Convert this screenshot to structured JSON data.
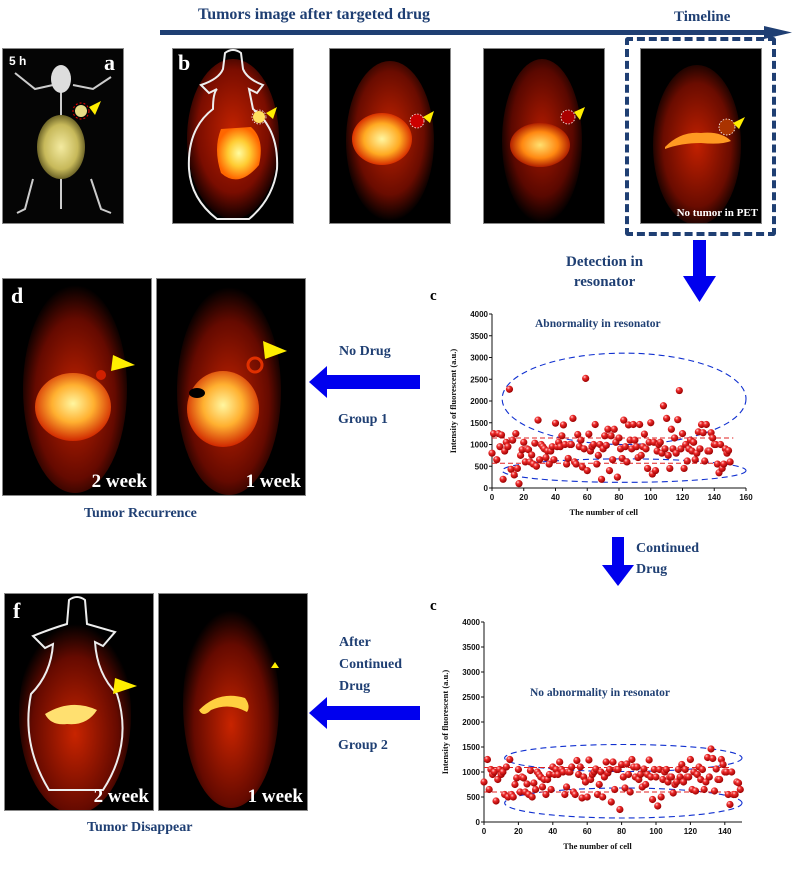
{
  "header": {
    "title": "Tumors image after targeted drug",
    "timeline_label": "Timeline"
  },
  "panels": {
    "a": {
      "letter": "a",
      "time_label": "5 h"
    },
    "b": {
      "letter": "b"
    },
    "last": {
      "caption": "No tumor in PET"
    },
    "d": {
      "letter": "d",
      "left_label": "2 week",
      "right_label": "1 week",
      "caption": "Tumor Recurrence"
    },
    "f": {
      "letter": "f",
      "left_label": "2 week",
      "right_label": "1 week",
      "caption": "Tumor Disappear"
    }
  },
  "flow": {
    "detection": [
      "Detection in",
      "resonator"
    ],
    "no_drug": "No Drug",
    "group1": "Group 1",
    "continued": [
      "Continued",
      "Drug"
    ],
    "after_continued": [
      "After",
      "Continued",
      "Drug"
    ],
    "group2": "Group 2"
  },
  "colors": {
    "navy": "#1f3f73",
    "arrow_blue": "#0000ee",
    "marker": "#e21a1a",
    "tumor_marker": "#ffee00"
  },
  "chart_data": [
    {
      "type": "scatter",
      "letter": "c",
      "title": "Abnormality in resonator",
      "xlabel": "The number of cell",
      "ylabel": "Intensity of fluorescent (a.u.)",
      "xlim": [
        0,
        160
      ],
      "ylim": [
        0,
        4000
      ],
      "xticks": [
        0,
        20,
        40,
        60,
        80,
        100,
        120,
        140,
        160
      ],
      "yticks": [
        0,
        500,
        1000,
        1500,
        2000,
        2500,
        3000,
        3500,
        4000
      ],
      "reference_lines": [
        1150,
        570
      ],
      "points": [
        [
          0,
          800
        ],
        [
          1,
          1250
        ],
        [
          3,
          650
        ],
        [
          4,
          1250
        ],
        [
          5,
          950
        ],
        [
          6,
          1220
        ],
        [
          7,
          200
        ],
        [
          8,
          850
        ],
        [
          9,
          1050
        ],
        [
          10,
          950
        ],
        [
          11,
          2270
        ],
        [
          12,
          430
        ],
        [
          13,
          1100
        ],
        [
          14,
          300
        ],
        [
          15,
          1250
        ],
        [
          16,
          450
        ],
        [
          17,
          100
        ],
        [
          18,
          750
        ],
        [
          19,
          880
        ],
        [
          20,
          1050
        ],
        [
          21,
          600
        ],
        [
          22,
          900
        ],
        [
          23,
          880
        ],
        [
          24,
          600
        ],
        [
          25,
          760
        ],
        [
          26,
          550
        ],
        [
          27,
          1030
        ],
        [
          28,
          500
        ],
        [
          29,
          1560
        ],
        [
          30,
          650
        ],
        [
          31,
          1000
        ],
        [
          32,
          950
        ],
        [
          33,
          900
        ],
        [
          34,
          700
        ],
        [
          35,
          850
        ],
        [
          36,
          550
        ],
        [
          37,
          850
        ],
        [
          38,
          950
        ],
        [
          39,
          650
        ],
        [
          40,
          1490
        ],
        [
          41,
          950
        ],
        [
          42,
          1050
        ],
        [
          43,
          950
        ],
        [
          44,
          1200
        ],
        [
          45,
          1450
        ],
        [
          46,
          1000
        ],
        [
          47,
          550
        ],
        [
          48,
          680
        ],
        [
          49,
          1000
        ],
        [
          50,
          1000
        ],
        [
          51,
          1600
        ],
        [
          52,
          600
        ],
        [
          53,
          550
        ],
        [
          54,
          1230
        ],
        [
          55,
          950
        ],
        [
          56,
          1100
        ],
        [
          57,
          480
        ],
        [
          58,
          900
        ],
        [
          59,
          2520
        ],
        [
          60,
          400
        ],
        [
          61,
          1240
        ],
        [
          62,
          850
        ],
        [
          63,
          950
        ],
        [
          64,
          1000
        ],
        [
          65,
          1460
        ],
        [
          66,
          550
        ],
        [
          67,
          750
        ],
        [
          68,
          1000
        ],
        [
          69,
          200
        ],
        [
          70,
          900
        ],
        [
          71,
          1200
        ],
        [
          72,
          980
        ],
        [
          73,
          1350
        ],
        [
          74,
          400
        ],
        [
          75,
          1200
        ],
        [
          76,
          650
        ],
        [
          77,
          1350
        ],
        [
          78,
          1050
        ],
        [
          79,
          250
        ],
        [
          80,
          1150
        ],
        [
          81,
          900
        ],
        [
          82,
          680
        ],
        [
          83,
          1560
        ],
        [
          84,
          950
        ],
        [
          85,
          600
        ],
        [
          86,
          1450
        ],
        [
          87,
          1100
        ],
        [
          88,
          900
        ],
        [
          89,
          1460
        ],
        [
          90,
          1100
        ],
        [
          91,
          950
        ],
        [
          92,
          700
        ],
        [
          93,
          1460
        ],
        [
          94,
          750
        ],
        [
          95,
          950
        ],
        [
          96,
          1240
        ],
        [
          97,
          900
        ],
        [
          98,
          450
        ],
        [
          99,
          1050
        ],
        [
          100,
          1500
        ],
        [
          101,
          320
        ],
        [
          102,
          1050
        ],
        [
          103,
          400
        ],
        [
          104,
          850
        ],
        [
          105,
          1000
        ],
        [
          106,
          1050
        ],
        [
          107,
          800
        ],
        [
          108,
          1890
        ],
        [
          109,
          900
        ],
        [
          110,
          1600
        ],
        [
          111,
          750
        ],
        [
          112,
          450
        ],
        [
          113,
          1350
        ],
        [
          114,
          900
        ],
        [
          115,
          1150
        ],
        [
          116,
          800
        ],
        [
          117,
          1570
        ],
        [
          118,
          2240
        ],
        [
          119,
          900
        ],
        [
          120,
          1250
        ],
        [
          121,
          450
        ],
        [
          122,
          1000
        ],
        [
          123,
          620
        ],
        [
          124,
          900
        ],
        [
          125,
          1100
        ],
        [
          126,
          850
        ],
        [
          127,
          1050
        ],
        [
          128,
          650
        ],
        [
          129,
          800
        ],
        [
          130,
          1290
        ],
        [
          131,
          900
        ],
        [
          132,
          1460
        ],
        [
          133,
          1270
        ],
        [
          134,
          620
        ],
        [
          135,
          1460
        ],
        [
          136,
          850
        ],
        [
          137,
          850
        ],
        [
          138,
          1270
        ],
        [
          139,
          1150
        ],
        [
          140,
          1000
        ],
        [
          141,
          1000
        ],
        [
          142,
          550
        ],
        [
          143,
          350
        ],
        [
          144,
          1000
        ],
        [
          145,
          450
        ],
        [
          146,
          550
        ],
        [
          147,
          900
        ],
        [
          148,
          800
        ],
        [
          149,
          860
        ],
        [
          150,
          600
        ]
      ]
    },
    {
      "type": "scatter",
      "letter": "c",
      "title": "No abnormality in resonator",
      "xlabel": "The number of cell",
      "ylabel": "Intensity of fluorescent (a.u.)",
      "xlim": [
        0,
        150
      ],
      "ylim": [
        0,
        4000
      ],
      "xticks": [
        0,
        20,
        40,
        60,
        80,
        100,
        120,
        140
      ],
      "yticks": [
        0,
        500,
        1000,
        1500,
        2000,
        2500,
        3000,
        3500,
        4000
      ],
      "reference_lines": [
        1090,
        600
      ],
      "points": [
        [
          0,
          800
        ],
        [
          2,
          1250
        ],
        [
          3,
          650
        ],
        [
          4,
          1050
        ],
        [
          5,
          950
        ],
        [
          6,
          1000
        ],
        [
          7,
          420
        ],
        [
          8,
          850
        ],
        [
          9,
          1050
        ],
        [
          10,
          950
        ],
        [
          11,
          1000
        ],
        [
          12,
          550
        ],
        [
          13,
          1100
        ],
        [
          14,
          500
        ],
        [
          15,
          1250
        ],
        [
          16,
          550
        ],
        [
          17,
          500
        ],
        [
          18,
          750
        ],
        [
          19,
          880
        ],
        [
          20,
          1050
        ],
        [
          21,
          600
        ],
        [
          22,
          900
        ],
        [
          23,
          880
        ],
        [
          24,
          600
        ],
        [
          25,
          760
        ],
        [
          26,
          550
        ],
        [
          27,
          1030
        ],
        [
          28,
          500
        ],
        [
          29,
          780
        ],
        [
          30,
          650
        ],
        [
          31,
          1000
        ],
        [
          32,
          950
        ],
        [
          33,
          900
        ],
        [
          34,
          700
        ],
        [
          35,
          850
        ],
        [
          36,
          550
        ],
        [
          37,
          850
        ],
        [
          38,
          950
        ],
        [
          39,
          650
        ],
        [
          40,
          1100
        ],
        [
          41,
          950
        ],
        [
          42,
          1050
        ],
        [
          43,
          950
        ],
        [
          44,
          1200
        ],
        [
          45,
          1050
        ],
        [
          46,
          1000
        ],
        [
          47,
          550
        ],
        [
          48,
          700
        ],
        [
          49,
          1000
        ],
        [
          50,
          1000
        ],
        [
          51,
          1100
        ],
        [
          52,
          600
        ],
        [
          53,
          550
        ],
        [
          54,
          1230
        ],
        [
          55,
          950
        ],
        [
          56,
          1100
        ],
        [
          57,
          480
        ],
        [
          58,
          900
        ],
        [
          59,
          800
        ],
        [
          60,
          500
        ],
        [
          61,
          1240
        ],
        [
          62,
          850
        ],
        [
          63,
          950
        ],
        [
          64,
          1000
        ],
        [
          65,
          1060
        ],
        [
          66,
          550
        ],
        [
          67,
          750
        ],
        [
          68,
          1000
        ],
        [
          69,
          500
        ],
        [
          70,
          900
        ],
        [
          71,
          1200
        ],
        [
          72,
          980
        ],
        [
          73,
          1050
        ],
        [
          74,
          400
        ],
        [
          75,
          1200
        ],
        [
          76,
          650
        ],
        [
          77,
          1050
        ],
        [
          78,
          1050
        ],
        [
          79,
          250
        ],
        [
          80,
          1150
        ],
        [
          81,
          900
        ],
        [
          82,
          680
        ],
        [
          83,
          1160
        ],
        [
          84,
          950
        ],
        [
          85,
          600
        ],
        [
          86,
          1250
        ],
        [
          87,
          1100
        ],
        [
          88,
          900
        ],
        [
          89,
          1100
        ],
        [
          90,
          850
        ],
        [
          91,
          950
        ],
        [
          92,
          700
        ],
        [
          93,
          1060
        ],
        [
          94,
          750
        ],
        [
          95,
          950
        ],
        [
          96,
          1240
        ],
        [
          97,
          900
        ],
        [
          98,
          450
        ],
        [
          99,
          1050
        ],
        [
          100,
          900
        ],
        [
          101,
          320
        ],
        [
          102,
          1050
        ],
        [
          103,
          500
        ],
        [
          104,
          850
        ],
        [
          105,
          1000
        ],
        [
          106,
          1050
        ],
        [
          107,
          800
        ],
        [
          108,
          900
        ],
        [
          109,
          900
        ],
        [
          110,
          580
        ],
        [
          111,
          750
        ],
        [
          112,
          800
        ],
        [
          113,
          1050
        ],
        [
          114,
          900
        ],
        [
          115,
          1150
        ],
        [
          116,
          800
        ],
        [
          117,
          1050
        ],
        [
          118,
          900
        ],
        [
          119,
          900
        ],
        [
          120,
          1250
        ],
        [
          121,
          650
        ],
        [
          122,
          1000
        ],
        [
          123,
          620
        ],
        [
          124,
          950
        ],
        [
          125,
          1100
        ],
        [
          126,
          850
        ],
        [
          127,
          1050
        ],
        [
          128,
          650
        ],
        [
          129,
          800
        ],
        [
          130,
          1290
        ],
        [
          131,
          900
        ],
        [
          132,
          1460
        ],
        [
          133,
          1270
        ],
        [
          134,
          620
        ],
        [
          135,
          1060
        ],
        [
          136,
          850
        ],
        [
          137,
          850
        ],
        [
          138,
          1250
        ],
        [
          139,
          1150
        ],
        [
          140,
          1000
        ],
        [
          141,
          1000
        ],
        [
          142,
          550
        ],
        [
          143,
          350
        ],
        [
          144,
          1000
        ],
        [
          145,
          550
        ],
        [
          146,
          550
        ],
        [
          147,
          800
        ],
        [
          148,
          780
        ],
        [
          149,
          650
        ]
      ]
    }
  ]
}
